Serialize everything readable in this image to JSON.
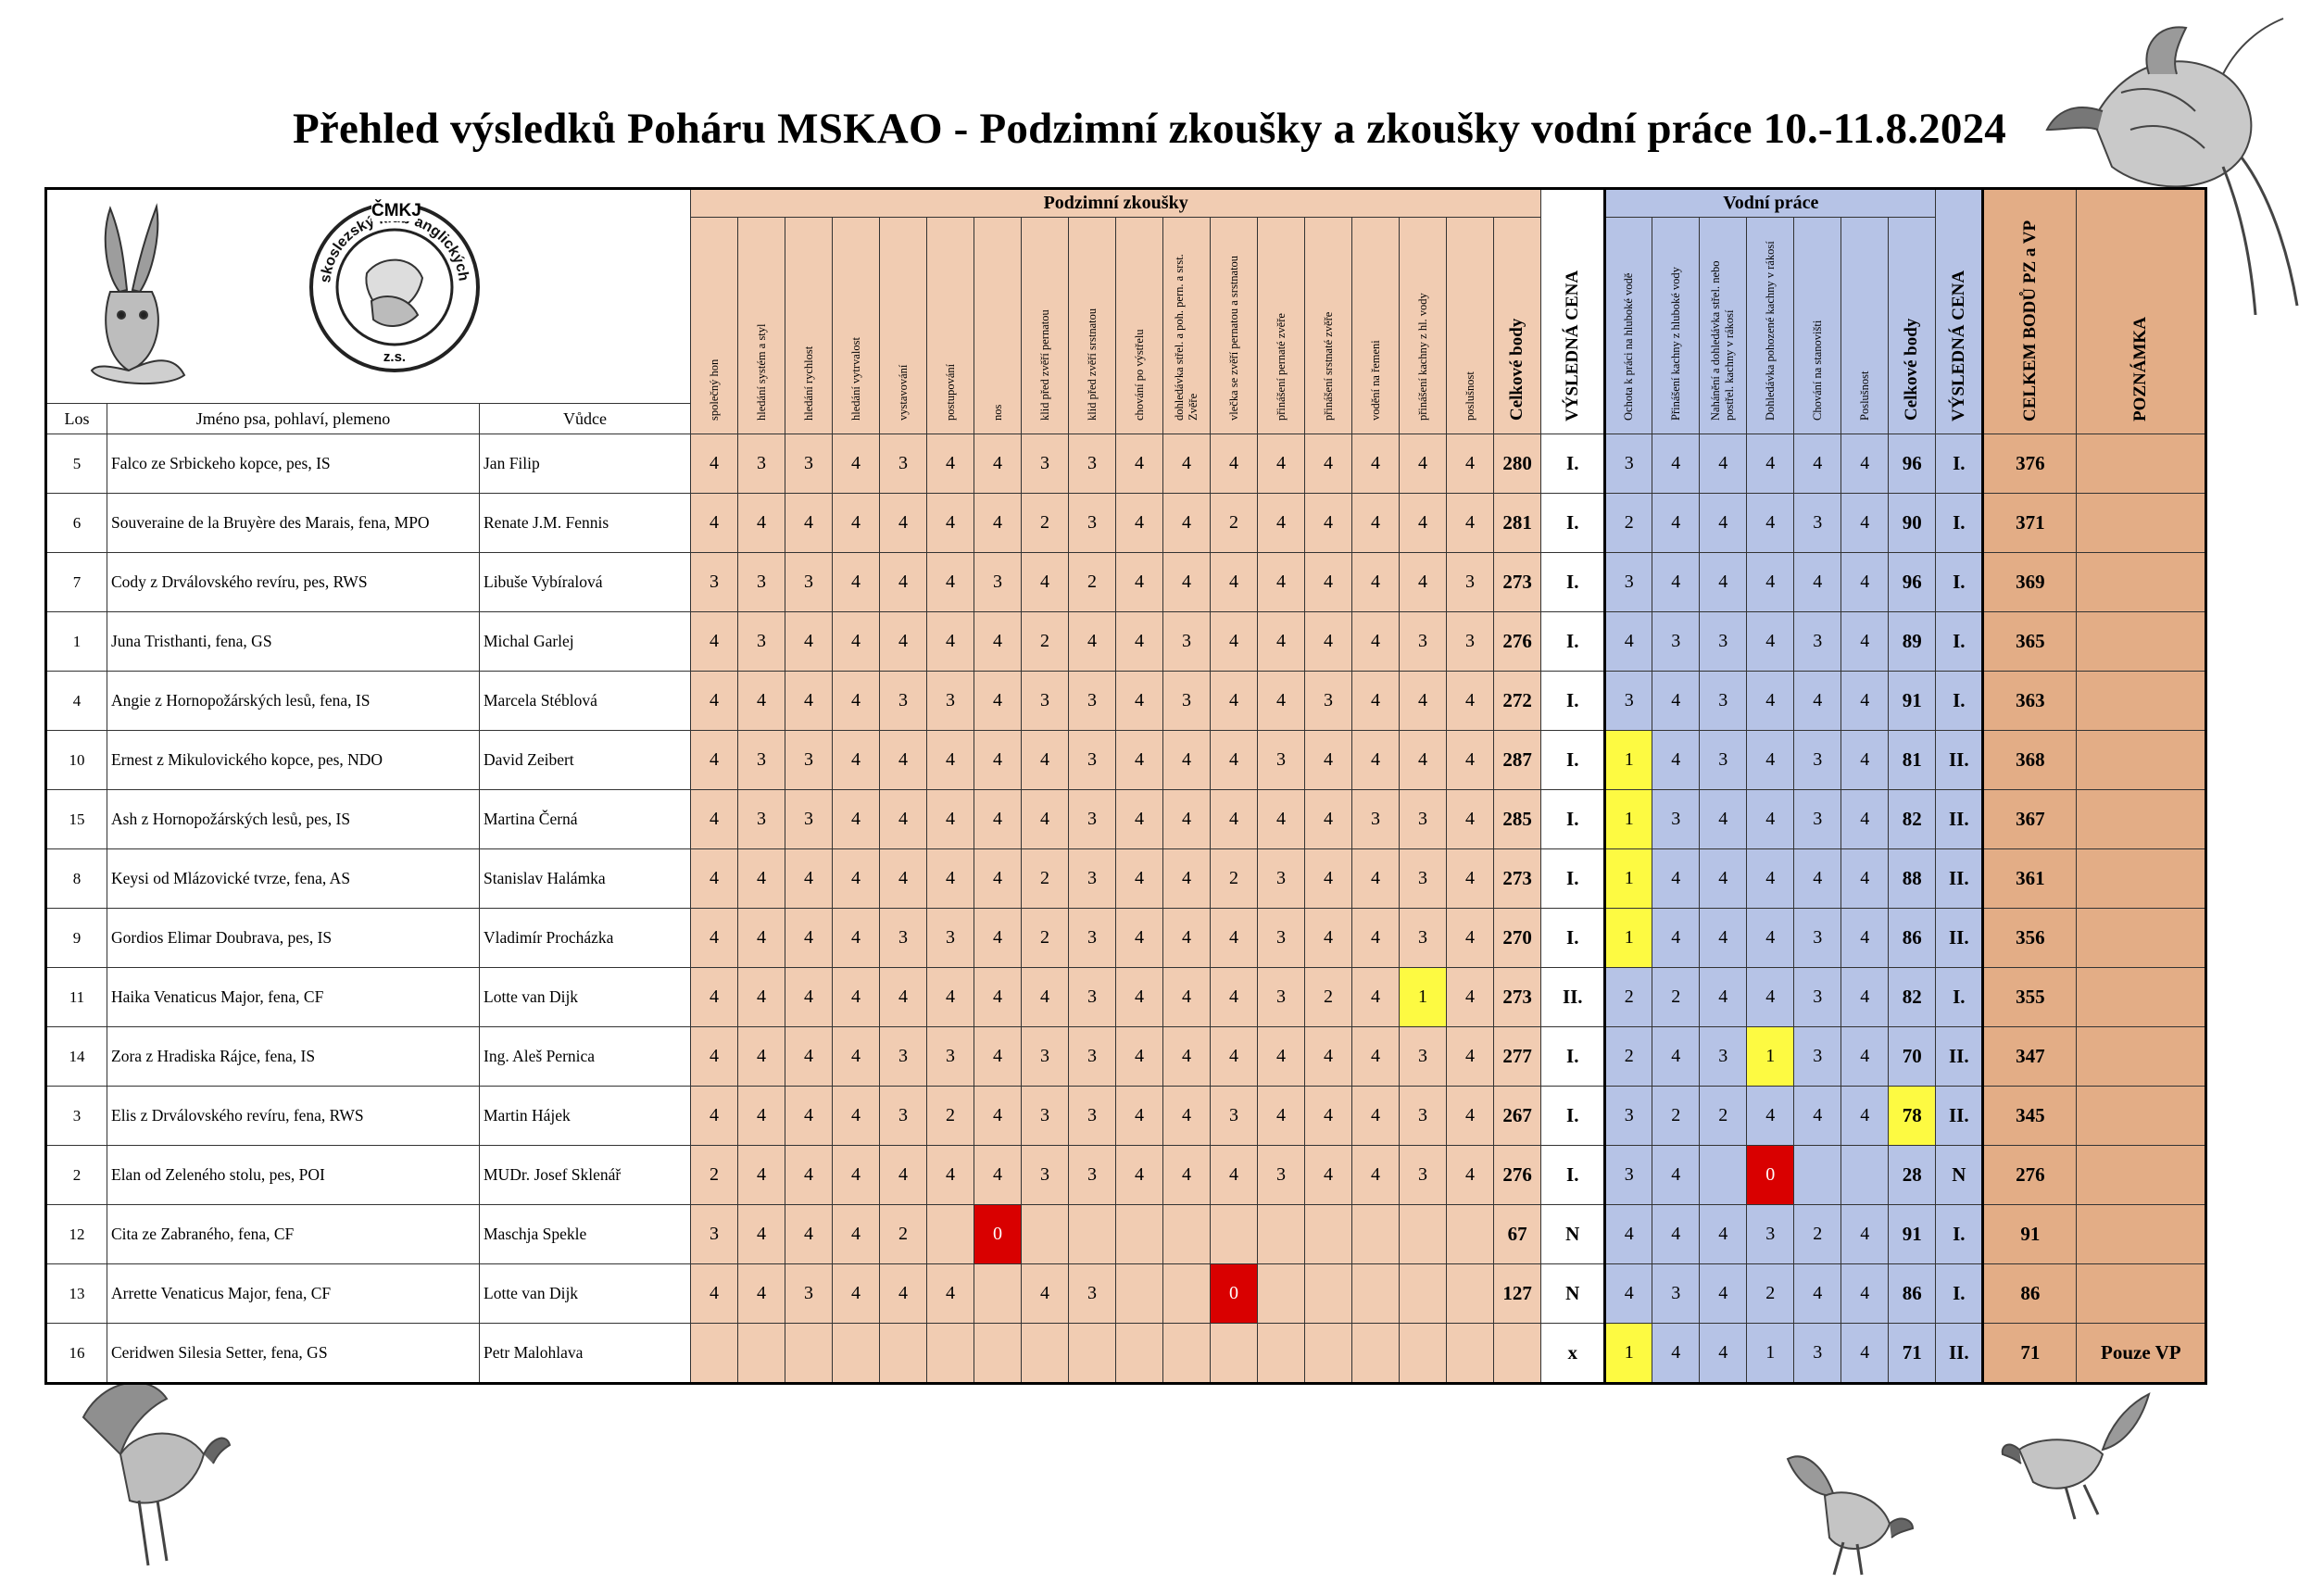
{
  "title": "Přehled výsledků Poháru MSKAO - Podzimní zkoušky a zkoušky vodní práce 10.-11.8.2024",
  "logo": {
    "org": "ČMKJ",
    "club": "Moravskoslezský klub anglických ohařů",
    "suffix": "z.s."
  },
  "headers": {
    "los": "Los",
    "name": "Jméno psa, pohlaví, plemeno",
    "vudce": "Vůdce",
    "pz_section": "Podzimní zkoušky",
    "vp_section": "Vodní práce",
    "pz_columns": [
      "společný hon",
      "hledání systém a styl",
      "hledání rychlost",
      "hledání vytrvalost",
      "vystavování",
      "postupování",
      "nos",
      "klid před zvěří pernatou",
      "klid před zvěří srstnatou",
      "chování po výstřelu",
      "dohledávka střel. a poh. pern. a srst. Zvěře",
      "vlečka se zvěří pernatou a srstnatou",
      "přinášení pernaté zvěře",
      "přinášení srstnaté zvěře",
      "vodění na řemeni",
      "přinášení kachny z hl. vody",
      "poslušnost"
    ],
    "pz_total": "Celkové body",
    "pz_result": "VÝSLEDNÁ CENA",
    "vp_columns": [
      "Ochota k práci na hluboké vodě",
      "Přinášení kachny z hluboké vody",
      "Nahánění a dohledávka střel. nebo postřel. kachny v rákosí",
      "Dohledávka pohozené kachny v rákosí",
      "Chování na stanovišti",
      "Poslušnost"
    ],
    "vp_total": "Celkové body",
    "vp_result": "VÝSLEDNÁ CENA",
    "grand_total": "CELKEM BODŮ PZ a VP",
    "note": "POZNÁMKA"
  },
  "colors": {
    "pz_bg": "#f1ccb2",
    "vp_bg": "#b6c3e6",
    "total_bg": "#e3ad86",
    "yellow": "#fdfa42",
    "red": "#d90000"
  },
  "rows": [
    {
      "los": "5",
      "name": "Falco ze Srbickeho kopce, pes, IS",
      "vudce": "Jan  Filip",
      "pz": [
        "4",
        "3",
        "3",
        "4",
        "3",
        "4",
        "4",
        "3",
        "3",
        "4",
        "4",
        "4",
        "4",
        "4",
        "4",
        "4",
        "4"
      ],
      "pz_total": "280",
      "pz_result": "I.",
      "vp": [
        "3",
        "4",
        "4",
        "4",
        "4",
        "4"
      ],
      "vp_total": "96",
      "vp_result": "I.",
      "grand": "376",
      "note": ""
    },
    {
      "los": "6",
      "name": "Souveraine de la Bruyère des Marais, fena, MPO",
      "vudce": "Renate J.M.  Fennis",
      "pz": [
        "4",
        "4",
        "4",
        "4",
        "4",
        "4",
        "4",
        "2",
        "3",
        "4",
        "4",
        "2",
        "4",
        "4",
        "4",
        "4",
        "4"
      ],
      "pz_total": "281",
      "pz_result": "I.",
      "vp": [
        "2",
        "4",
        "4",
        "4",
        "3",
        "4"
      ],
      "vp_total": "90",
      "vp_result": "I.",
      "grand": "371",
      "note": ""
    },
    {
      "los": "7",
      "name": "Cody z Drválovského revíru, pes, RWS",
      "vudce": "Libuše Vybíralová",
      "pz": [
        "3",
        "3",
        "3",
        "4",
        "4",
        "4",
        "3",
        "4",
        "2",
        "4",
        "4",
        "4",
        "4",
        "4",
        "4",
        "4",
        "3"
      ],
      "pz_total": "273",
      "pz_result": "I.",
      "vp": [
        "3",
        "4",
        "4",
        "4",
        "4",
        "4"
      ],
      "vp_total": "96",
      "vp_result": "I.",
      "grand": "369",
      "note": ""
    },
    {
      "los": "1",
      "name": "Juna Tristhanti, fena, GS",
      "vudce": "Michal Garlej",
      "pz": [
        "4",
        "3",
        "4",
        "4",
        "4",
        "4",
        "4",
        "2",
        "4",
        "4",
        "3",
        "4",
        "4",
        "4",
        "4",
        "3",
        "3"
      ],
      "pz_total": "276",
      "pz_result": "I.",
      "vp": [
        "4",
        "3",
        "3",
        "4",
        "3",
        "4"
      ],
      "vp_total": "89",
      "vp_result": "I.",
      "grand": "365",
      "note": ""
    },
    {
      "los": "4",
      "name": "Angie z Hornopožárských lesů, fena, IS",
      "vudce": "Marcela Stéblová",
      "pz": [
        "4",
        "4",
        "4",
        "4",
        "3",
        "3",
        "4",
        "3",
        "3",
        "4",
        "3",
        "4",
        "4",
        "3",
        "4",
        "4",
        "4"
      ],
      "pz_total": "272",
      "pz_result": "I.",
      "vp": [
        "3",
        "4",
        "3",
        "4",
        "4",
        "4"
      ],
      "vp_total": "91",
      "vp_result": "I.",
      "grand": "363",
      "note": ""
    },
    {
      "los": "10",
      "name": "Ernest z Mikulovického kopce, pes, NDO",
      "vudce": "David  Zeibert",
      "pz": [
        "4",
        "3",
        "3",
        "4",
        "4",
        "4",
        "4",
        "4",
        "3",
        "4",
        "4",
        "4",
        "3",
        "4",
        "4",
        "4",
        "4"
      ],
      "pz_total": "287",
      "pz_result": "I.",
      "vp": [
        "1",
        "4",
        "3",
        "4",
        "3",
        "4"
      ],
      "vp_total": "81",
      "vp_result": "II.",
      "grand": "368",
      "note": ""
    },
    {
      "los": "15",
      "name": "Ash z Hornopožárských lesů, pes, IS",
      "vudce": "Martina  Černá",
      "pz": [
        "4",
        "3",
        "3",
        "4",
        "4",
        "4",
        "4",
        "4",
        "3",
        "4",
        "4",
        "4",
        "4",
        "4",
        "3",
        "3",
        "4"
      ],
      "pz_total": "285",
      "pz_result": "I.",
      "vp": [
        "1",
        "3",
        "4",
        "4",
        "3",
        "4"
      ],
      "vp_total": "82",
      "vp_result": "II.",
      "grand": "367",
      "note": ""
    },
    {
      "los": "8",
      "name": "Keysi od Mlázovické tvrze, fena, AS",
      "vudce": "Stanislav  Halámka",
      "pz": [
        "4",
        "4",
        "4",
        "4",
        "4",
        "4",
        "4",
        "2",
        "3",
        "4",
        "4",
        "2",
        "3",
        "4",
        "4",
        "3",
        "4"
      ],
      "pz_total": "273",
      "pz_result": "I.",
      "vp": [
        "1",
        "4",
        "4",
        "4",
        "4",
        "4"
      ],
      "vp_total": "88",
      "vp_result": "II.",
      "grand": "361",
      "note": ""
    },
    {
      "los": "9",
      "name": "Gordios Elimar Doubrava, pes, IS",
      "vudce": "Vladimír Procházka",
      "pz": [
        "4",
        "4",
        "4",
        "4",
        "3",
        "3",
        "4",
        "2",
        "3",
        "4",
        "4",
        "4",
        "3",
        "4",
        "4",
        "3",
        "4"
      ],
      "pz_total": "270",
      "pz_result": "I.",
      "vp": [
        "1",
        "4",
        "4",
        "4",
        "3",
        "4"
      ],
      "vp_total": "86",
      "vp_result": "II.",
      "grand": "356",
      "note": ""
    },
    {
      "los": "11",
      "name": "Haika Venaticus Major, fena, CF",
      "vudce": "Lotte van Dijk",
      "pz": [
        "4",
        "4",
        "4",
        "4",
        "4",
        "4",
        "4",
        "4",
        "3",
        "4",
        "4",
        "4",
        "3",
        "2",
        "4",
        "1",
        "4"
      ],
      "pz_total": "273",
      "pz_result": "II.",
      "vp": [
        "2",
        "2",
        "4",
        "4",
        "3",
        "4"
      ],
      "vp_total": "82",
      "vp_result": "I.",
      "grand": "355",
      "note": ""
    },
    {
      "los": "14",
      "name": "Zora z Hradiska Rájce, fena, IS",
      "vudce": "Ing. Aleš Pernica",
      "pz": [
        "4",
        "4",
        "4",
        "4",
        "3",
        "3",
        "4",
        "3",
        "3",
        "4",
        "4",
        "4",
        "4",
        "4",
        "4",
        "3",
        "4"
      ],
      "pz_total": "277",
      "pz_result": "I.",
      "vp": [
        "2",
        "4",
        "3",
        "1",
        "3",
        "4"
      ],
      "vp_total": "70",
      "vp_result": "II.",
      "grand": "347",
      "note": ""
    },
    {
      "los": "3",
      "name": "Elis z Drválovského revíru, fena, RWS",
      "vudce": "Martin  Hájek",
      "pz": [
        "4",
        "4",
        "4",
        "4",
        "3",
        "2",
        "4",
        "3",
        "3",
        "4",
        "4",
        "3",
        "4",
        "4",
        "4",
        "3",
        "4"
      ],
      "pz_total": "267",
      "pz_result": "I.",
      "vp": [
        "3",
        "2",
        "2",
        "4",
        "4",
        "4"
      ],
      "vp_total": "78",
      "vp_result": "II.",
      "grand": "345",
      "note": ""
    },
    {
      "los": "2",
      "name": "Elan od Zeleného stolu, pes, POI",
      "vudce": "MUDr. Josef  Sklenář",
      "pz": [
        "2",
        "4",
        "4",
        "4",
        "4",
        "4",
        "4",
        "3",
        "3",
        "4",
        "4",
        "4",
        "3",
        "4",
        "4",
        "3",
        "4"
      ],
      "pz_total": "276",
      "pz_result": "I.",
      "vp": [
        "3",
        "4",
        "",
        "0",
        "",
        ""
      ],
      "vp_total": "28",
      "vp_result": "N",
      "grand": "276",
      "note": ""
    },
    {
      "los": "12",
      "name": "Cita ze Zabraného, fena, CF",
      "vudce": "Maschja Spekle",
      "pz": [
        "3",
        "4",
        "4",
        "4",
        "2",
        "",
        "0",
        "",
        "",
        "",
        "",
        "",
        "",
        "",
        "",
        "",
        ""
      ],
      "pz_total": "67",
      "pz_result": "N",
      "vp": [
        "4",
        "4",
        "4",
        "3",
        "2",
        "4"
      ],
      "vp_total": "91",
      "vp_result": "I.",
      "grand": "91",
      "note": ""
    },
    {
      "los": "13",
      "name": "Arrette Venaticus Major, fena, CF",
      "vudce": "Lotte  van Dijk",
      "pz": [
        "4",
        "4",
        "3",
        "4",
        "4",
        "4",
        "",
        "4",
        "3",
        "",
        "",
        "0",
        "",
        "",
        "",
        "",
        ""
      ],
      "pz_total": "127",
      "pz_result": "N",
      "vp": [
        "4",
        "3",
        "4",
        "2",
        "4",
        "4"
      ],
      "vp_total": "86",
      "vp_result": "I.",
      "grand": "86",
      "note": ""
    },
    {
      "los": "16",
      "name": "Ceridwen Silesia Setter, fena, GS",
      "vudce": "Petr Malohlava",
      "pz": [
        "",
        "",
        "",
        "",
        "",
        "",
        "",
        "",
        "",
        "",
        "",
        "",
        "",
        "",
        "",
        "",
        ""
      ],
      "pz_total": "",
      "pz_result": "x",
      "vp": [
        "1",
        "4",
        "4",
        "1",
        "3",
        "4"
      ],
      "vp_total": "71",
      "vp_result": "II.",
      "grand": "71",
      "note": "Pouze VP"
    }
  ],
  "highlights": [
    {
      "row": 9,
      "section": "pz",
      "col": 15,
      "color": "yellow"
    },
    {
      "row": 13,
      "section": "pz",
      "col": 6,
      "color": "red"
    },
    {
      "row": 14,
      "section": "pz",
      "col": 11,
      "color": "red"
    },
    {
      "row": 5,
      "section": "vp",
      "col": 0,
      "color": "yellow"
    },
    {
      "row": 6,
      "section": "vp",
      "col": 0,
      "color": "yellow"
    },
    {
      "row": 7,
      "section": "vp",
      "col": 0,
      "color": "yellow"
    },
    {
      "row": 8,
      "section": "vp",
      "col": 0,
      "color": "yellow"
    },
    {
      "row": 15,
      "section": "vp",
      "col": 0,
      "color": "yellow"
    },
    {
      "row": 10,
      "section": "vp",
      "col": 3,
      "color": "yellow"
    },
    {
      "row": 12,
      "section": "vp",
      "col": 3,
      "color": "red"
    },
    {
      "row": 11,
      "section": "vp_total",
      "col": 0,
      "color": "yellow"
    }
  ]
}
